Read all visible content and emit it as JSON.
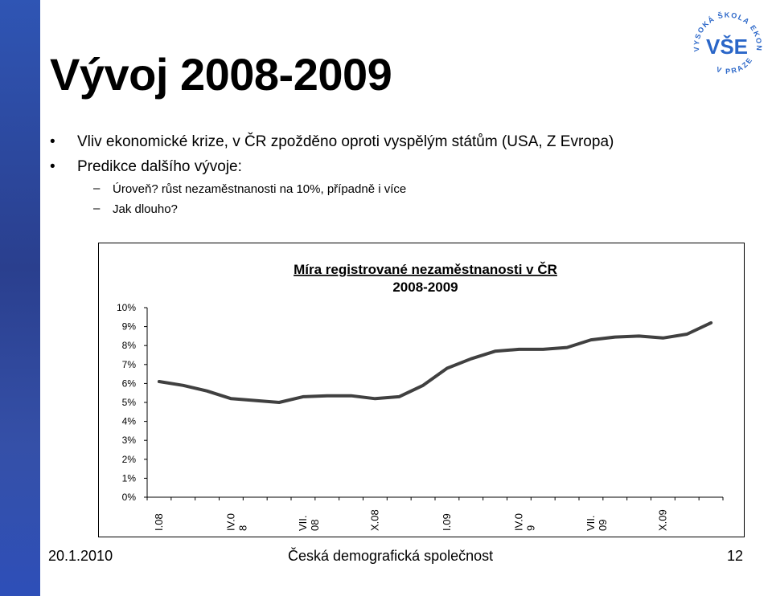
{
  "slide": {
    "title": "Vývoj 2008-2009",
    "logo_text": "VYSOKÁ ŠKOLA EKONOMICKÁ V PRAZE",
    "logo_mark": "VŠE",
    "bullets": [
      {
        "text": "Vliv ekonomické krize, v ČR zpožděno oproti vyspělým státům (USA, Z Evropa)"
      },
      {
        "text": "Predikce dalšího vývoje:"
      }
    ],
    "sub_bullets": [
      {
        "text": "Úroveň? růst nezaměstnanosti na 10%, případně i více"
      },
      {
        "text": "Jak dlouho?"
      }
    ],
    "bullet_symbol": "•",
    "dash_symbol": "–"
  },
  "footer": {
    "date": "20.1.2010",
    "organization": "Česká demografická společnost",
    "page": "12"
  },
  "colors": {
    "band": "#2e4fa8",
    "line": "#404040",
    "logo": "#2a66c8"
  },
  "chart_data": {
    "type": "line",
    "title_line1": "Míra registrované nezaměstnanosti v ČR",
    "title_line2": "2008-2009",
    "ylim": [
      0,
      10
    ],
    "y_ticks": [
      "0%",
      "1%",
      "2%",
      "3%",
      "4%",
      "5%",
      "6%",
      "7%",
      "8%",
      "9%",
      "10%"
    ],
    "x_tick_labels": [
      {
        "label": "I.08",
        "index": 0
      },
      {
        "label": "IV.08",
        "index": 3
      },
      {
        "label": "VII.08",
        "index": 6
      },
      {
        "label": "X.08",
        "index": 9
      },
      {
        "label": "I.09",
        "index": 12
      },
      {
        "label": "IV.09",
        "index": 15
      },
      {
        "label": "VII.09",
        "index": 18
      },
      {
        "label": "X.09",
        "index": 21
      }
    ],
    "series": [
      {
        "values": [
          6.1,
          5.9,
          5.6,
          5.2,
          5.1,
          5.0,
          5.3,
          5.35,
          5.35,
          5.2,
          5.3,
          5.9,
          6.8,
          7.3,
          7.7,
          7.8,
          7.8,
          7.9,
          8.3,
          8.45,
          8.5,
          8.4,
          8.6,
          9.2
        ]
      }
    ],
    "grid": false,
    "legend": "none"
  }
}
